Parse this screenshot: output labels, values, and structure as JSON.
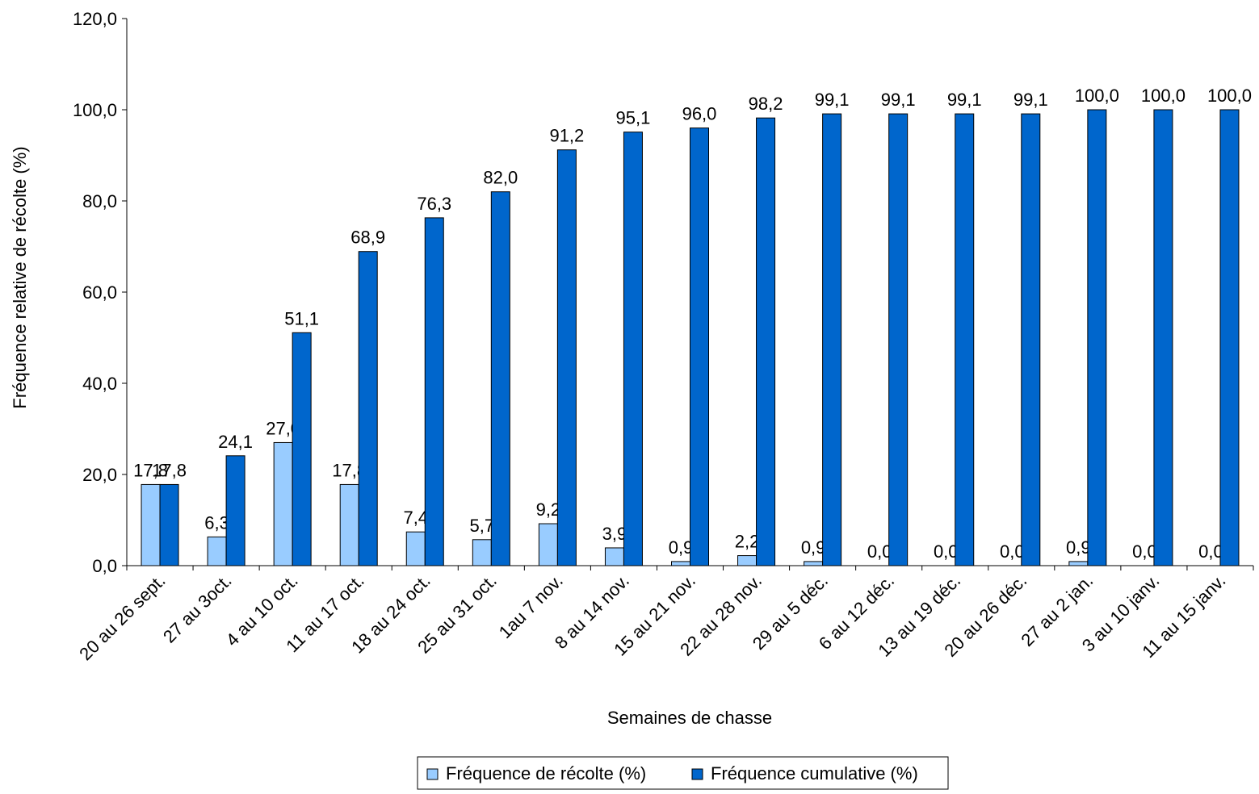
{
  "chart_data": {
    "type": "bar",
    "title": "",
    "xlabel": "Semaines de chasse",
    "ylabel": "Fréquence relative de récolte (%)",
    "ylim": [
      0,
      120
    ],
    "yticks": [
      "0,0",
      "20,0",
      "40,0",
      "60,0",
      "80,0",
      "100,0",
      "120,0"
    ],
    "grid": false,
    "legend_position": "bottom",
    "categories": [
      "20 au 26 sept.",
      "27 au 3oct.",
      "4 au 10 oct.",
      "11 au 17 oct.",
      "18 au 24 oct.",
      "25 au 31 oct.",
      "1au 7 nov.",
      "8 au 14 nov.",
      "15 au 21 nov.",
      "22 au 28 nov.",
      "29 au 5 déc.",
      "6 au 12 déc.",
      "13 au 19 déc.",
      "20 au 26 déc.",
      "27 au 2 jan.",
      "3 au 10 janv.",
      "11 au 15 janv."
    ],
    "series": [
      {
        "name": "Fréquence de récolte (%)",
        "color": "#99CCFF",
        "values": [
          17.8,
          6.3,
          27.0,
          17.8,
          7.4,
          5.7,
          9.2,
          3.9,
          0.9,
          2.2,
          0.9,
          0.0,
          0.0,
          0.0,
          0.9,
          0.0,
          0.0
        ],
        "labels": [
          "17,8",
          "6,3",
          "27,0",
          "17,8",
          "7,4",
          "5,7",
          "9,2",
          "3,9",
          "0,9",
          "2,2",
          "0,9",
          "0,0",
          "0,0",
          "0,0",
          "0,9",
          "0,0",
          "0,0"
        ]
      },
      {
        "name": "Fréquence cumulative (%)",
        "color": "#0066CC",
        "values": [
          17.8,
          24.1,
          51.1,
          68.9,
          76.3,
          82.0,
          91.2,
          95.1,
          96.0,
          98.2,
          99.1,
          99.1,
          99.1,
          99.1,
          100.0,
          100.0,
          100.0
        ],
        "labels": [
          "17,8",
          "24,1",
          "51,1",
          "68,9",
          "76,3",
          "82,0",
          "91,2",
          "95,1",
          "96,0",
          "98,2",
          "99,1",
          "99,1",
          "99,1",
          "99,1",
          "100,0",
          "100,0",
          "100,0"
        ]
      }
    ]
  }
}
